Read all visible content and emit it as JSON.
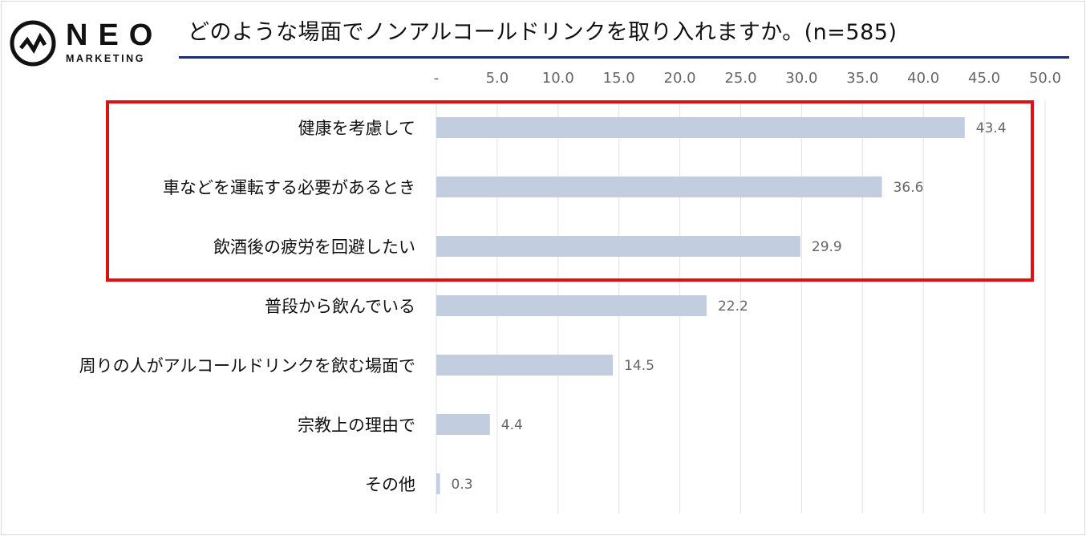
{
  "logo": {
    "word": "NEO",
    "sub": "MARKETING"
  },
  "chart_data": {
    "type": "bar",
    "orientation": "horizontal",
    "title": "どのような場面でノンアルコールドリンクを取り入れますか。(n=585)",
    "categories": [
      "健康を考慮して",
      "車などを運転する必要があるとき",
      "飲酒後の疲労を回避したい",
      "普段から飲んでいる",
      "周りの人がアルコールドリンクを飲む場面で",
      "宗教上の理由で",
      "その他"
    ],
    "values": [
      43.4,
      36.6,
      29.9,
      22.2,
      14.5,
      4.4,
      0.3
    ],
    "data_labels": [
      "43.4",
      "36.6",
      "29.9",
      "22.2",
      "14.5",
      "4.4",
      "0.3"
    ],
    "xlim": [
      0,
      50
    ],
    "xticks": [
      0,
      5,
      10,
      15,
      20,
      25,
      30,
      35,
      40,
      45,
      50
    ],
    "xtick_labels": [
      "-",
      "5.0",
      "10.0",
      "15.0",
      "20.0",
      "25.0",
      "30.0",
      "35.0",
      "40.0",
      "45.0",
      "50.0"
    ],
    "axis_position": "top",
    "grid": true,
    "highlight": {
      "categories_indices": [
        0,
        1,
        2
      ],
      "color": "#e01010"
    },
    "colors": {
      "bar": "#c3cde0",
      "grid": "#e2e2e2",
      "title_rule": "#1f2f6b"
    }
  }
}
